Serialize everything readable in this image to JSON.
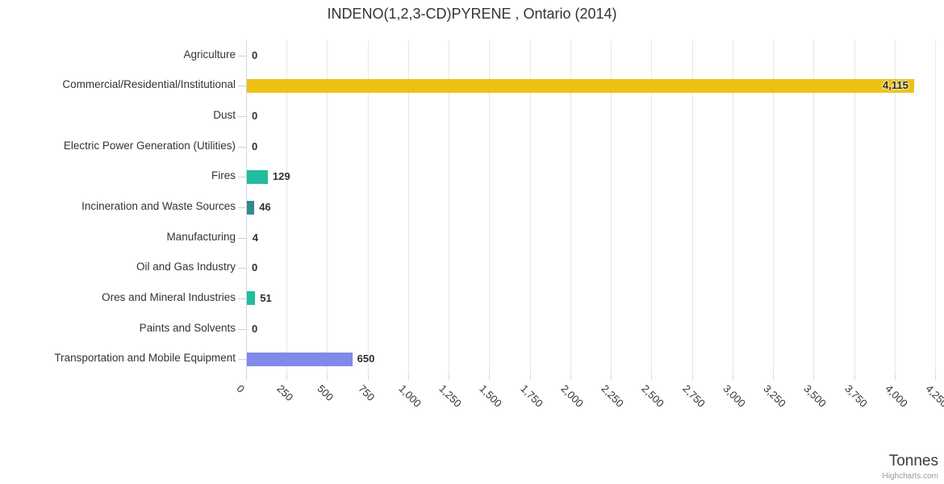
{
  "chart_data": {
    "type": "bar",
    "title": "INDENO(1,2,3-CD)PYRENE , Ontario (2014)",
    "categories": [
      "Agriculture",
      "Commercial/Residential/Institutional",
      "Dust",
      "Electric Power Generation (Utilities)",
      "Fires",
      "Incineration and Waste Sources",
      "Manufacturing",
      "Oil and Gas Industry",
      "Ores and Mineral Industries",
      "Paints and Solvents",
      "Transportation and Mobile Equipment"
    ],
    "values": [
      0,
      4115,
      0,
      0,
      129,
      46,
      4,
      0,
      51,
      0,
      650
    ],
    "value_labels": [
      "0",
      "4,115",
      "0",
      "0",
      "129",
      "46",
      "4",
      "0",
      "51",
      "0",
      "650"
    ],
    "bar_colors": [
      null,
      "#eec213",
      null,
      null,
      "#21bd9c",
      "#35898b",
      null,
      null,
      "#21bd9c",
      null,
      "#8289e8"
    ],
    "xlabel": "Tonnes",
    "xlim": [
      0,
      4250
    ],
    "tick_interval": 250,
    "xticks": [
      "0",
      "250",
      "500",
      "750",
      "1,000",
      "1,250",
      "1,500",
      "1,750",
      "2,000",
      "2,250",
      "2,500",
      "2,750",
      "3,000",
      "3,250",
      "3,500",
      "3,750",
      "4,000",
      "4,250"
    ],
    "grid": true,
    "legend": "none",
    "credit": "Highcharts.com"
  }
}
